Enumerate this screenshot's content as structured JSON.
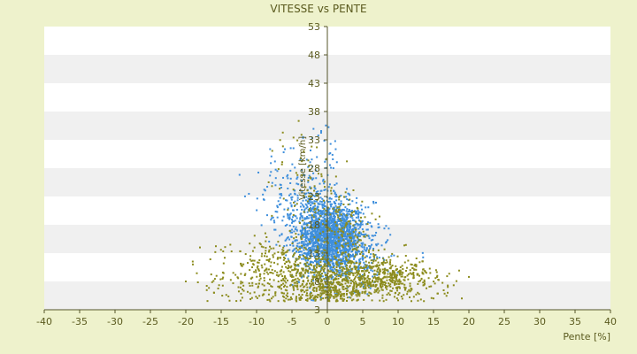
{
  "chart_data": {
    "type": "scatter",
    "title": "VITESSE vs PENTE",
    "xlabel": "Pente [%]",
    "ylabel": "Vitesse [km/h]",
    "xlim": [
      -40,
      40
    ],
    "ylim": [
      3,
      53
    ],
    "xticks": [
      -40,
      -35,
      -30,
      -25,
      -20,
      -15,
      -10,
      -5,
      0,
      5,
      10,
      15,
      20,
      25,
      30,
      35,
      40
    ],
    "yticks": [
      3,
      8,
      13,
      18,
      23,
      28,
      33,
      38,
      43,
      48,
      53
    ],
    "grid": "horizontal alternating bands",
    "colors": {
      "background": "#eef2cc",
      "plot_band_light": "#ffffff",
      "plot_band_dark": "#f0f0f0",
      "axis": "#55552a",
      "text": "#5a5a1e",
      "series_blue": "#3f8fdc",
      "series_olive": "#8c8c1e"
    },
    "series": [
      {
        "key": "blue",
        "color": "#3f8fdc",
        "clusters": [
          {
            "mx": 0.5,
            "sx": 2.4,
            "my": 15.5,
            "sy": 3.2,
            "n": 1700
          },
          {
            "mx": -2.0,
            "sx": 2.0,
            "my": 19.5,
            "sy": 4.0,
            "n": 250
          },
          {
            "mx": -5.5,
            "sx": 2.6,
            "my": 23.0,
            "sy": 4.5,
            "n": 120
          },
          {
            "mx": 3.5,
            "sx": 2.8,
            "my": 12.0,
            "sy": 3.0,
            "n": 220
          },
          {
            "mx": -1.0,
            "sx": 1.2,
            "my": 30.0,
            "sy": 3.5,
            "n": 25
          }
        ]
      },
      {
        "key": "olive",
        "color": "#8c8c1e",
        "clusters": [
          {
            "mx": 0.0,
            "sx": 3.2,
            "my": 7.5,
            "sy": 2.2,
            "n": 420
          },
          {
            "mx": 6.5,
            "sx": 3.5,
            "my": 9.0,
            "sy": 2.0,
            "n": 450
          },
          {
            "mx": -6.0,
            "sx": 4.0,
            "my": 10.0,
            "sy": 3.0,
            "n": 330
          },
          {
            "mx": 11.0,
            "sx": 3.5,
            "my": 8.0,
            "sy": 1.6,
            "n": 120
          },
          {
            "mx": -12.0,
            "sx": 3.2,
            "my": 8.5,
            "sy": 2.5,
            "n": 70
          },
          {
            "mx": -3.0,
            "sx": 2.5,
            "my": 25.0,
            "sy": 5.0,
            "n": 80
          },
          {
            "mx": 2.0,
            "sx": 2.0,
            "my": 17.0,
            "sy": 3.0,
            "n": 150
          }
        ],
        "extra_points": [
          [
            -19,
            11
          ],
          [
            -18,
            14
          ],
          [
            -16,
            6
          ],
          [
            17,
            6
          ],
          [
            19,
            5
          ],
          [
            15,
            5
          ],
          [
            -20,
            8
          ]
        ]
      }
    ]
  }
}
